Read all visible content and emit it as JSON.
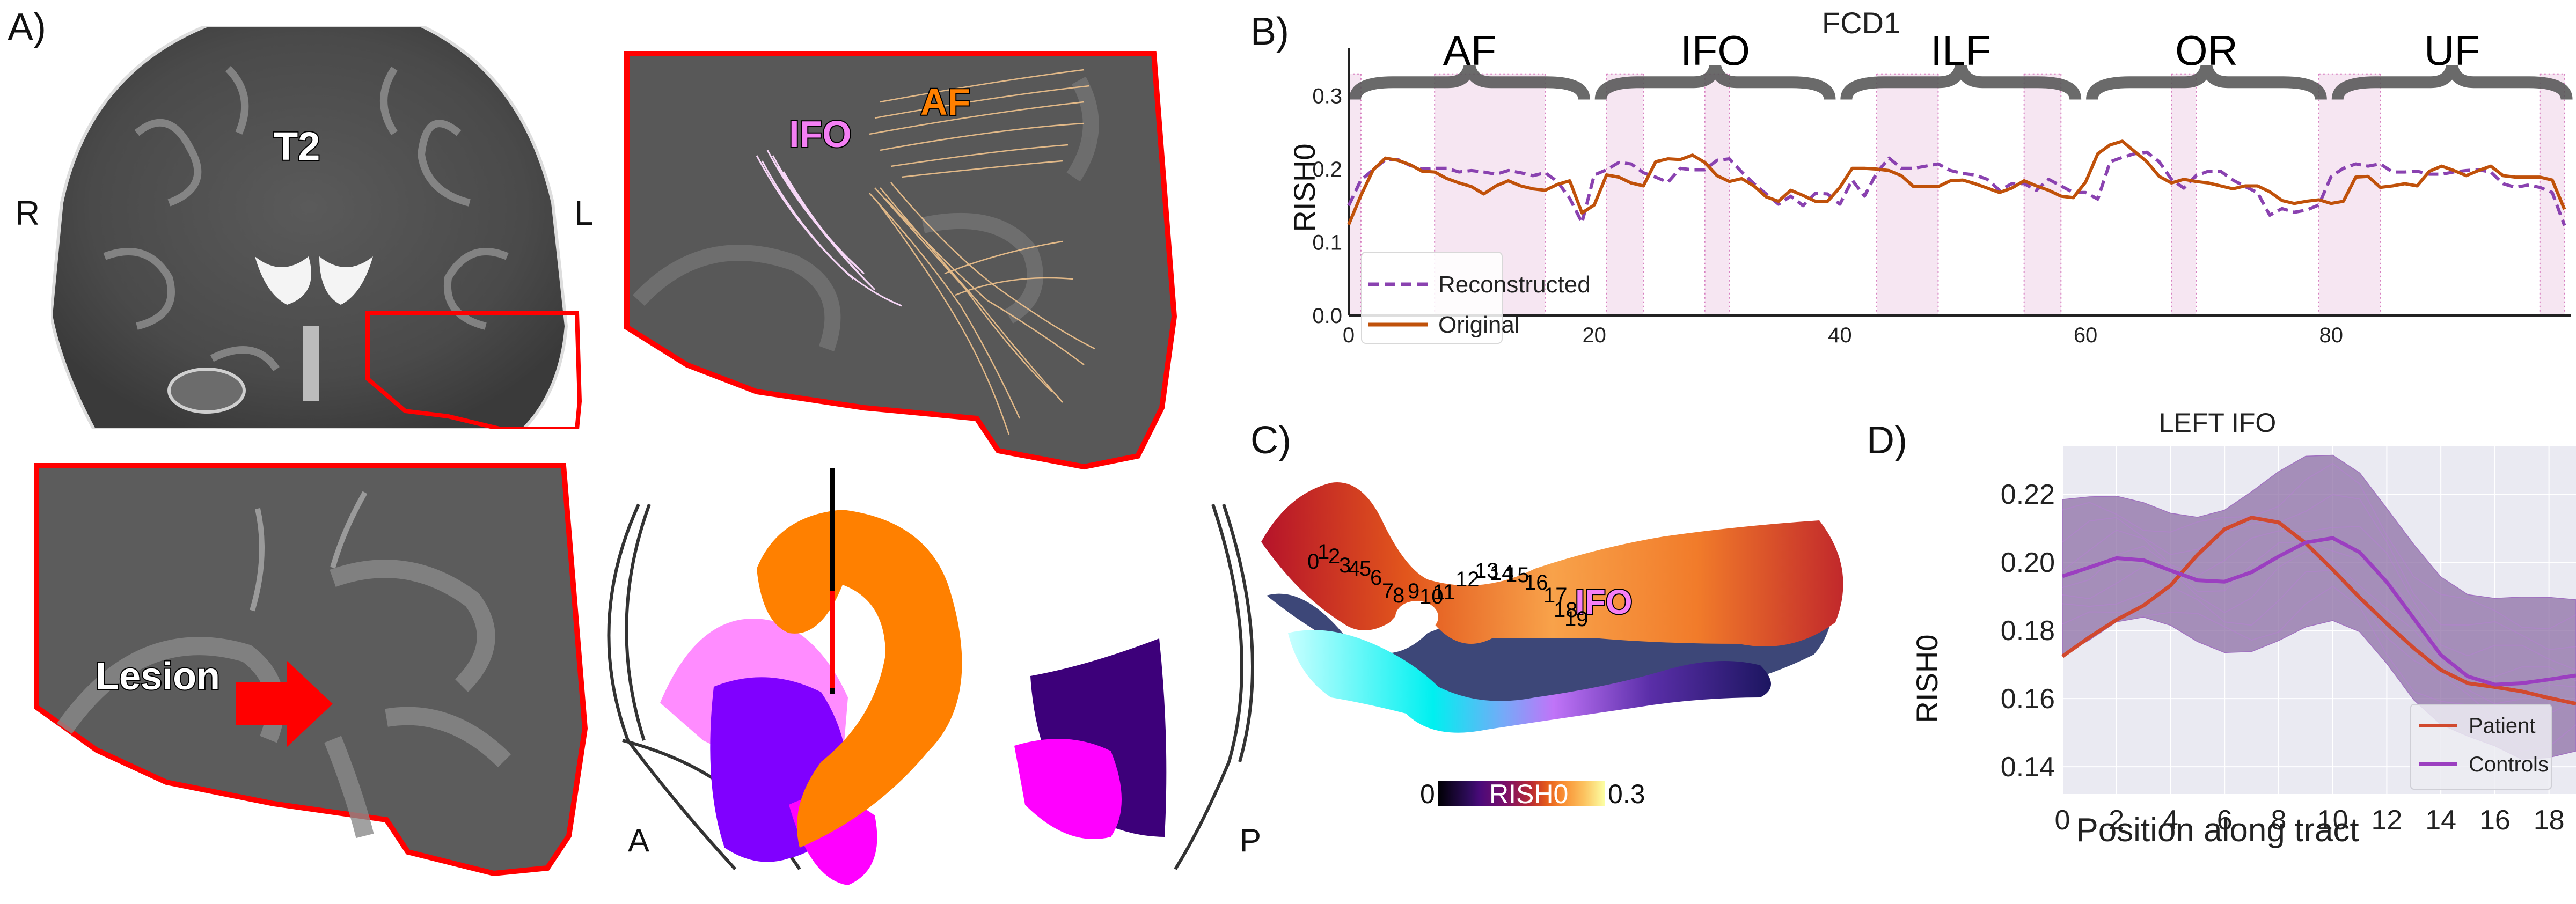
{
  "figure": {
    "panel_labels": {
      "a": "A)",
      "b": "B)",
      "c": "C)",
      "d": "D)"
    },
    "panel_a": {
      "coronal_label": "T2",
      "orient_right": "R",
      "orient_left": "L",
      "inset_labels": {
        "ifo": "IFO",
        "af": "AF"
      },
      "lesion_label": "Lesion",
      "sagittal_left": "A",
      "sagittal_right": "P",
      "colors": {
        "outline": "#ff0000",
        "ifo": "#f57ff5",
        "af": "#ff8000",
        "ifo_dark": "#7f00ff",
        "or": "#3d007a",
        "uf": "#ff00ff"
      }
    },
    "panel_c": {
      "tract_label": "IFO",
      "segment_labels": [
        "0",
        "1",
        "2",
        "3",
        "4",
        "5",
        "6",
        "7",
        "8",
        "9",
        "10",
        "11",
        "12",
        "13",
        "14",
        "15",
        "16",
        "17",
        "18",
        "19"
      ],
      "colorbar": {
        "min_label": "0",
        "max_label": "0.3",
        "title": "RISH0",
        "colormap": "inferno"
      }
    }
  },
  "chart_data": [
    {
      "id": "B",
      "type": "line",
      "title": "FCD1",
      "xlabel": "",
      "ylabel": "RISH0",
      "xlim": [
        0,
        99.5
      ],
      "ylim": [
        0,
        0.365
      ],
      "xticks": [
        0,
        20,
        40,
        60,
        80
      ],
      "yticks": [
        0.0,
        0.1,
        0.2,
        0.3
      ],
      "ytick_labels": [
        "0.0",
        "0.1",
        "0.2",
        "0.3"
      ],
      "grid": false,
      "legend_position": "bottom-left",
      "bundle_groups": [
        {
          "label": "AF",
          "range": [
            0,
            19
          ]
        },
        {
          "label": "IFO",
          "range": [
            20,
            39
          ]
        },
        {
          "label": "ILF",
          "range": [
            40,
            59
          ]
        },
        {
          "label": "OR",
          "range": [
            60,
            79
          ]
        },
        {
          "label": "UF",
          "range": [
            80,
            99
          ]
        }
      ],
      "highlight_spans": [
        [
          0,
          1
        ],
        [
          7,
          16
        ],
        [
          21,
          24
        ],
        [
          29,
          31
        ],
        [
          43,
          48
        ],
        [
          55,
          58
        ],
        [
          67,
          69
        ],
        [
          79,
          84
        ],
        [
          97,
          99
        ]
      ],
      "highlight_top": 0.33,
      "series": [
        {
          "name": "Reconstructed",
          "style": "dashed",
          "color": "#8a42b0",
          "values": [
            0.15,
            0.185,
            0.199,
            0.213,
            0.213,
            0.205,
            0.2,
            0.201,
            0.201,
            0.196,
            0.198,
            0.196,
            0.193,
            0.198,
            0.195,
            0.191,
            0.195,
            0.183,
            0.16,
            0.127,
            0.192,
            0.199,
            0.209,
            0.207,
            0.195,
            0.189,
            0.182,
            0.201,
            0.199,
            0.199,
            0.212,
            0.214,
            0.196,
            0.18,
            0.166,
            0.152,
            0.163,
            0.15,
            0.167,
            0.166,
            0.152,
            0.185,
            0.163,
            0.195,
            0.215,
            0.201,
            0.201,
            0.204,
            0.207,
            0.198,
            0.194,
            0.192,
            0.186,
            0.171,
            0.18,
            0.18,
            0.171,
            0.186,
            0.177,
            0.168,
            0.168,
            0.159,
            0.21,
            0.216,
            0.221,
            0.223,
            0.21,
            0.186,
            0.174,
            0.191,
            0.197,
            0.197,
            0.185,
            0.176,
            0.168,
            0.137,
            0.146,
            0.141,
            0.144,
            0.151,
            0.19,
            0.201,
            0.207,
            0.204,
            0.207,
            0.196,
            0.196,
            0.197,
            0.193,
            0.193,
            0.196,
            0.198,
            0.199,
            0.196,
            0.18,
            0.175,
            0.178,
            0.175,
            0.168,
            0.123
          ]
        },
        {
          "name": "Original",
          "style": "solid",
          "color": "#c0510a",
          "values": [
            0.124,
            0.164,
            0.199,
            0.215,
            0.212,
            0.206,
            0.197,
            0.196,
            0.187,
            0.181,
            0.176,
            0.166,
            0.177,
            0.184,
            0.177,
            0.173,
            0.171,
            0.179,
            0.184,
            0.14,
            0.151,
            0.192,
            0.189,
            0.181,
            0.177,
            0.21,
            0.214,
            0.213,
            0.219,
            0.209,
            0.191,
            0.183,
            0.187,
            0.177,
            0.162,
            0.156,
            0.171,
            0.164,
            0.156,
            0.156,
            0.175,
            0.201,
            0.201,
            0.2,
            0.198,
            0.191,
            0.176,
            0.176,
            0.176,
            0.184,
            0.185,
            0.18,
            0.174,
            0.168,
            0.174,
            0.184,
            0.177,
            0.171,
            0.163,
            0.161,
            0.182,
            0.221,
            0.233,
            0.238,
            0.224,
            0.21,
            0.19,
            0.181,
            0.186,
            0.183,
            0.181,
            0.177,
            0.173,
            0.177,
            0.177,
            0.169,
            0.157,
            0.153,
            0.156,
            0.158,
            0.153,
            0.156,
            0.189,
            0.19,
            0.175,
            0.177,
            0.18,
            0.177,
            0.197,
            0.204,
            0.198,
            0.191,
            0.198,
            0.204,
            0.191,
            0.189,
            0.189,
            0.189,
            0.185,
            0.145
          ]
        }
      ]
    },
    {
      "id": "D",
      "type": "line",
      "title": "LEFT IFO",
      "xlabel": "Position along tract",
      "ylabel": "RISH0",
      "xlim": [
        0,
        19
      ],
      "ylim": [
        0.132,
        0.234
      ],
      "xticks": [
        0,
        2,
        4,
        6,
        8,
        10,
        12,
        14,
        16,
        18
      ],
      "yticks": [
        0.14,
        0.16,
        0.18,
        0.2,
        0.22
      ],
      "ytick_labels": [
        "0.14",
        "0.16",
        "0.18",
        "0.20",
        "0.22"
      ],
      "grid": true,
      "legend_position": "bottom-right",
      "x": [
        0,
        1,
        2,
        3,
        4,
        5,
        6,
        7,
        8,
        9,
        10,
        11,
        12,
        13,
        14,
        15,
        16,
        17,
        18,
        19
      ],
      "series": [
        {
          "name": "Patient",
          "color": "#d1492e",
          "values": [
            0.1724,
            0.178,
            0.1831,
            0.1873,
            0.1932,
            0.2022,
            0.2097,
            0.2131,
            0.2117,
            0.2056,
            0.1978,
            0.1896,
            0.182,
            0.1748,
            0.1684,
            0.1645,
            0.1634,
            0.1621,
            0.1602,
            0.1585
          ]
        },
        {
          "name": "Controls",
          "color": "#9b3fc0",
          "values": [
            0.1959,
            0.1985,
            0.2012,
            0.2006,
            0.1976,
            0.1947,
            0.1943,
            0.1971,
            0.2017,
            0.2058,
            0.2071,
            0.2029,
            0.1942,
            0.1835,
            0.1728,
            0.1665,
            0.1641,
            0.1645,
            0.1656,
            0.1668
          ]
        }
      ],
      "controls_band": {
        "color": "#8d6fa5",
        "upper": [
          0.2184,
          0.2192,
          0.2194,
          0.2175,
          0.2144,
          0.2132,
          0.2153,
          0.2207,
          0.2266,
          0.2311,
          0.2314,
          0.2262,
          0.2158,
          0.2052,
          0.1957,
          0.1905,
          0.1894,
          0.1898,
          0.1897,
          0.189
        ],
        "lower": [
          0.1728,
          0.1772,
          0.1825,
          0.1839,
          0.1815,
          0.1767,
          0.1735,
          0.1738,
          0.177,
          0.181,
          0.1829,
          0.1796,
          0.1703,
          0.1596,
          0.1524,
          0.149,
          0.1461,
          0.1422,
          0.1427,
          0.1446
        ]
      }
    }
  ]
}
